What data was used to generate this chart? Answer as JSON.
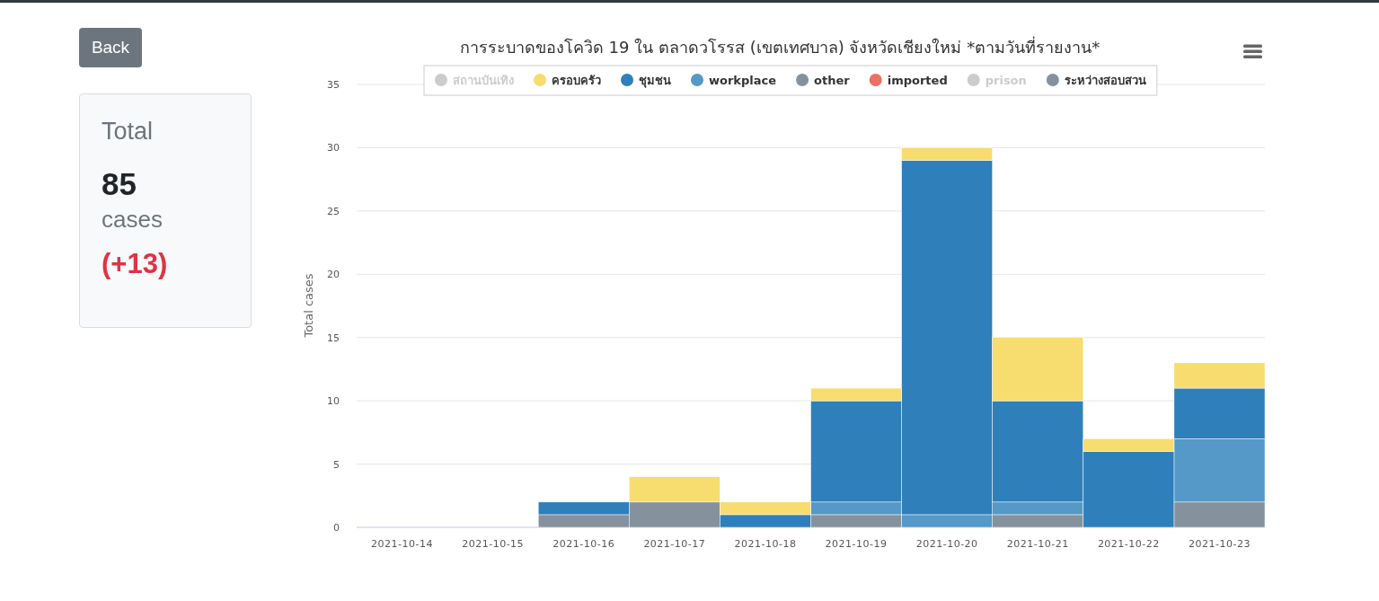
{
  "chart_data": [
    {
      "type": "bar",
      "title": "การระบาดของโควิด 19 ใน ตลาดวโรรส (เขตเทศบาล) จังหวัดเชียงใหม่ *ตามวันที่รายงาน*",
      "ylabel": "Total cases",
      "categories": [
        "2021-10-14",
        "2021-10-15",
        "2021-10-16",
        "2021-10-17",
        "2021-10-18",
        "2021-10-19",
        "2021-10-20",
        "2021-10-21",
        "2021-10-22",
        "2021-10-23"
      ],
      "stacked": true,
      "ylim": [
        0,
        35
      ],
      "yticks": [
        0,
        5,
        10,
        15,
        20,
        25,
        30,
        35
      ],
      "grid": "y",
      "legend": "top",
      "series": [
        {
          "name": "ระหว่างสอบสวน",
          "color": "#85929e",
          "values": [
            0,
            0,
            1,
            2,
            0,
            1,
            0,
            1,
            0,
            2
          ]
        },
        {
          "name": "prison",
          "color": "#cccccc",
          "values": [
            null,
            null,
            null,
            null,
            null,
            null,
            null,
            null,
            null,
            null
          ]
        },
        {
          "name": "imported",
          "color": "#ec7063",
          "values": [
            0,
            0,
            0,
            0,
            0,
            0,
            0,
            0,
            0,
            0
          ]
        },
        {
          "name": "other",
          "color": "#85929e",
          "values": [
            0,
            0,
            0,
            0,
            0,
            0,
            0,
            0,
            0,
            0
          ]
        },
        {
          "name": "workplace",
          "color": "#5499c7",
          "values": [
            0,
            0,
            0,
            0,
            0,
            1,
            1,
            1,
            0,
            5
          ]
        },
        {
          "name": "ชุมชน",
          "color": "#2e7fba",
          "values": [
            0,
            0,
            1,
            0,
            1,
            8,
            28,
            8,
            6,
            4
          ]
        },
        {
          "name": "ครอบครัว",
          "color": "#f7dc6f",
          "values": [
            0,
            0,
            0,
            2,
            1,
            1,
            1,
            5,
            1,
            2
          ]
        },
        {
          "name": "สถานบันเทิง",
          "color": "#cccccc",
          "values": [
            null,
            null,
            null,
            null,
            null,
            null,
            null,
            null,
            null,
            null
          ]
        }
      ]
    },
    {
      "type": "other",
      "title": "Total",
      "annotations": [
        "Back",
        "85",
        "cases",
        "(+13)"
      ]
    }
  ]
}
